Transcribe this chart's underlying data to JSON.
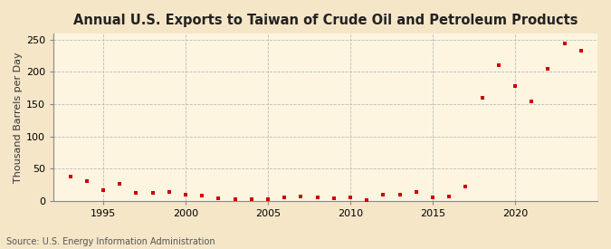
{
  "title": "Annual U.S. Exports to Taiwan of Crude Oil and Petroleum Products",
  "ylabel": "Thousand Barrels per Day",
  "source": "Source: U.S. Energy Information Administration",
  "fig_background_color": "#f5e6c8",
  "plot_background_color": "#fdf5e0",
  "marker_color": "#cc0000",
  "grid_color": "#bbbbbb",
  "spine_color": "#888888",
  "years": [
    1993,
    1994,
    1995,
    1996,
    1997,
    1998,
    1999,
    2000,
    2001,
    2002,
    2003,
    2004,
    2005,
    2006,
    2007,
    2008,
    2009,
    2010,
    2011,
    2012,
    2013,
    2014,
    2015,
    2016,
    2017,
    2018,
    2019,
    2020,
    2021,
    2022,
    2023,
    2024
  ],
  "values": [
    38,
    31,
    17,
    27,
    12,
    12,
    13,
    9,
    8,
    4,
    2,
    3,
    3,
    5,
    6,
    5,
    4,
    5,
    1,
    10,
    9,
    14,
    5,
    7,
    22,
    160,
    211,
    178,
    154,
    205,
    244,
    233
  ],
  "xlim": [
    1992,
    2025
  ],
  "ylim": [
    0,
    260
  ],
  "yticks": [
    0,
    50,
    100,
    150,
    200,
    250
  ],
  "xticks": [
    1995,
    2000,
    2005,
    2010,
    2015,
    2020
  ],
  "title_fontsize": 10.5,
  "label_fontsize": 8,
  "tick_fontsize": 8,
  "source_fontsize": 7
}
